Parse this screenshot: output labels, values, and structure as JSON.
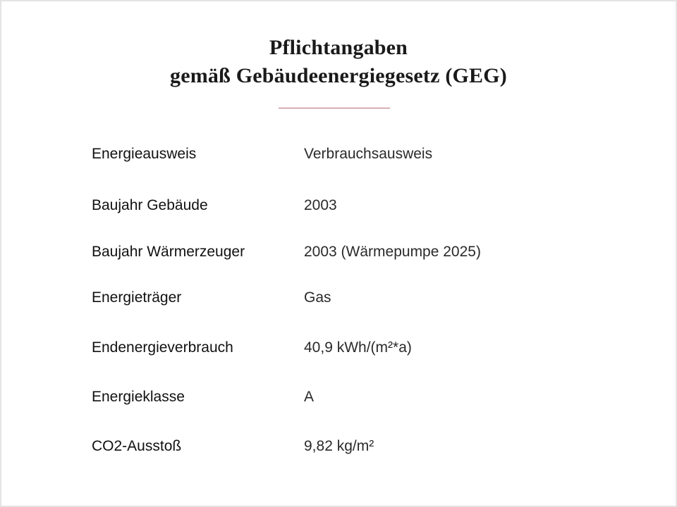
{
  "header": {
    "title_line1": "Pflichtangaben",
    "title_line2": "gemäß Gebäudeenergiegesetz (GEG)",
    "accent_color": "#b56b78"
  },
  "rows": [
    {
      "label": "Energieausweis",
      "value": "Verbrauchsausweis"
    },
    {
      "label": "Baujahr Gebäude",
      "value": "2003"
    },
    {
      "label": "Baujahr Wärmerzeuger",
      "value": "2003 (Wärmepumpe 2025)"
    },
    {
      "label": "Energieträger",
      "value": "Gas"
    },
    {
      "label": "Endenergieverbrauch",
      "value": "40,9 kWh/(m²*a)"
    },
    {
      "label": "Energieklasse",
      "value": "A"
    },
    {
      "label": "CO2-Ausstoß",
      "value": "9,82 kg/m²"
    }
  ]
}
